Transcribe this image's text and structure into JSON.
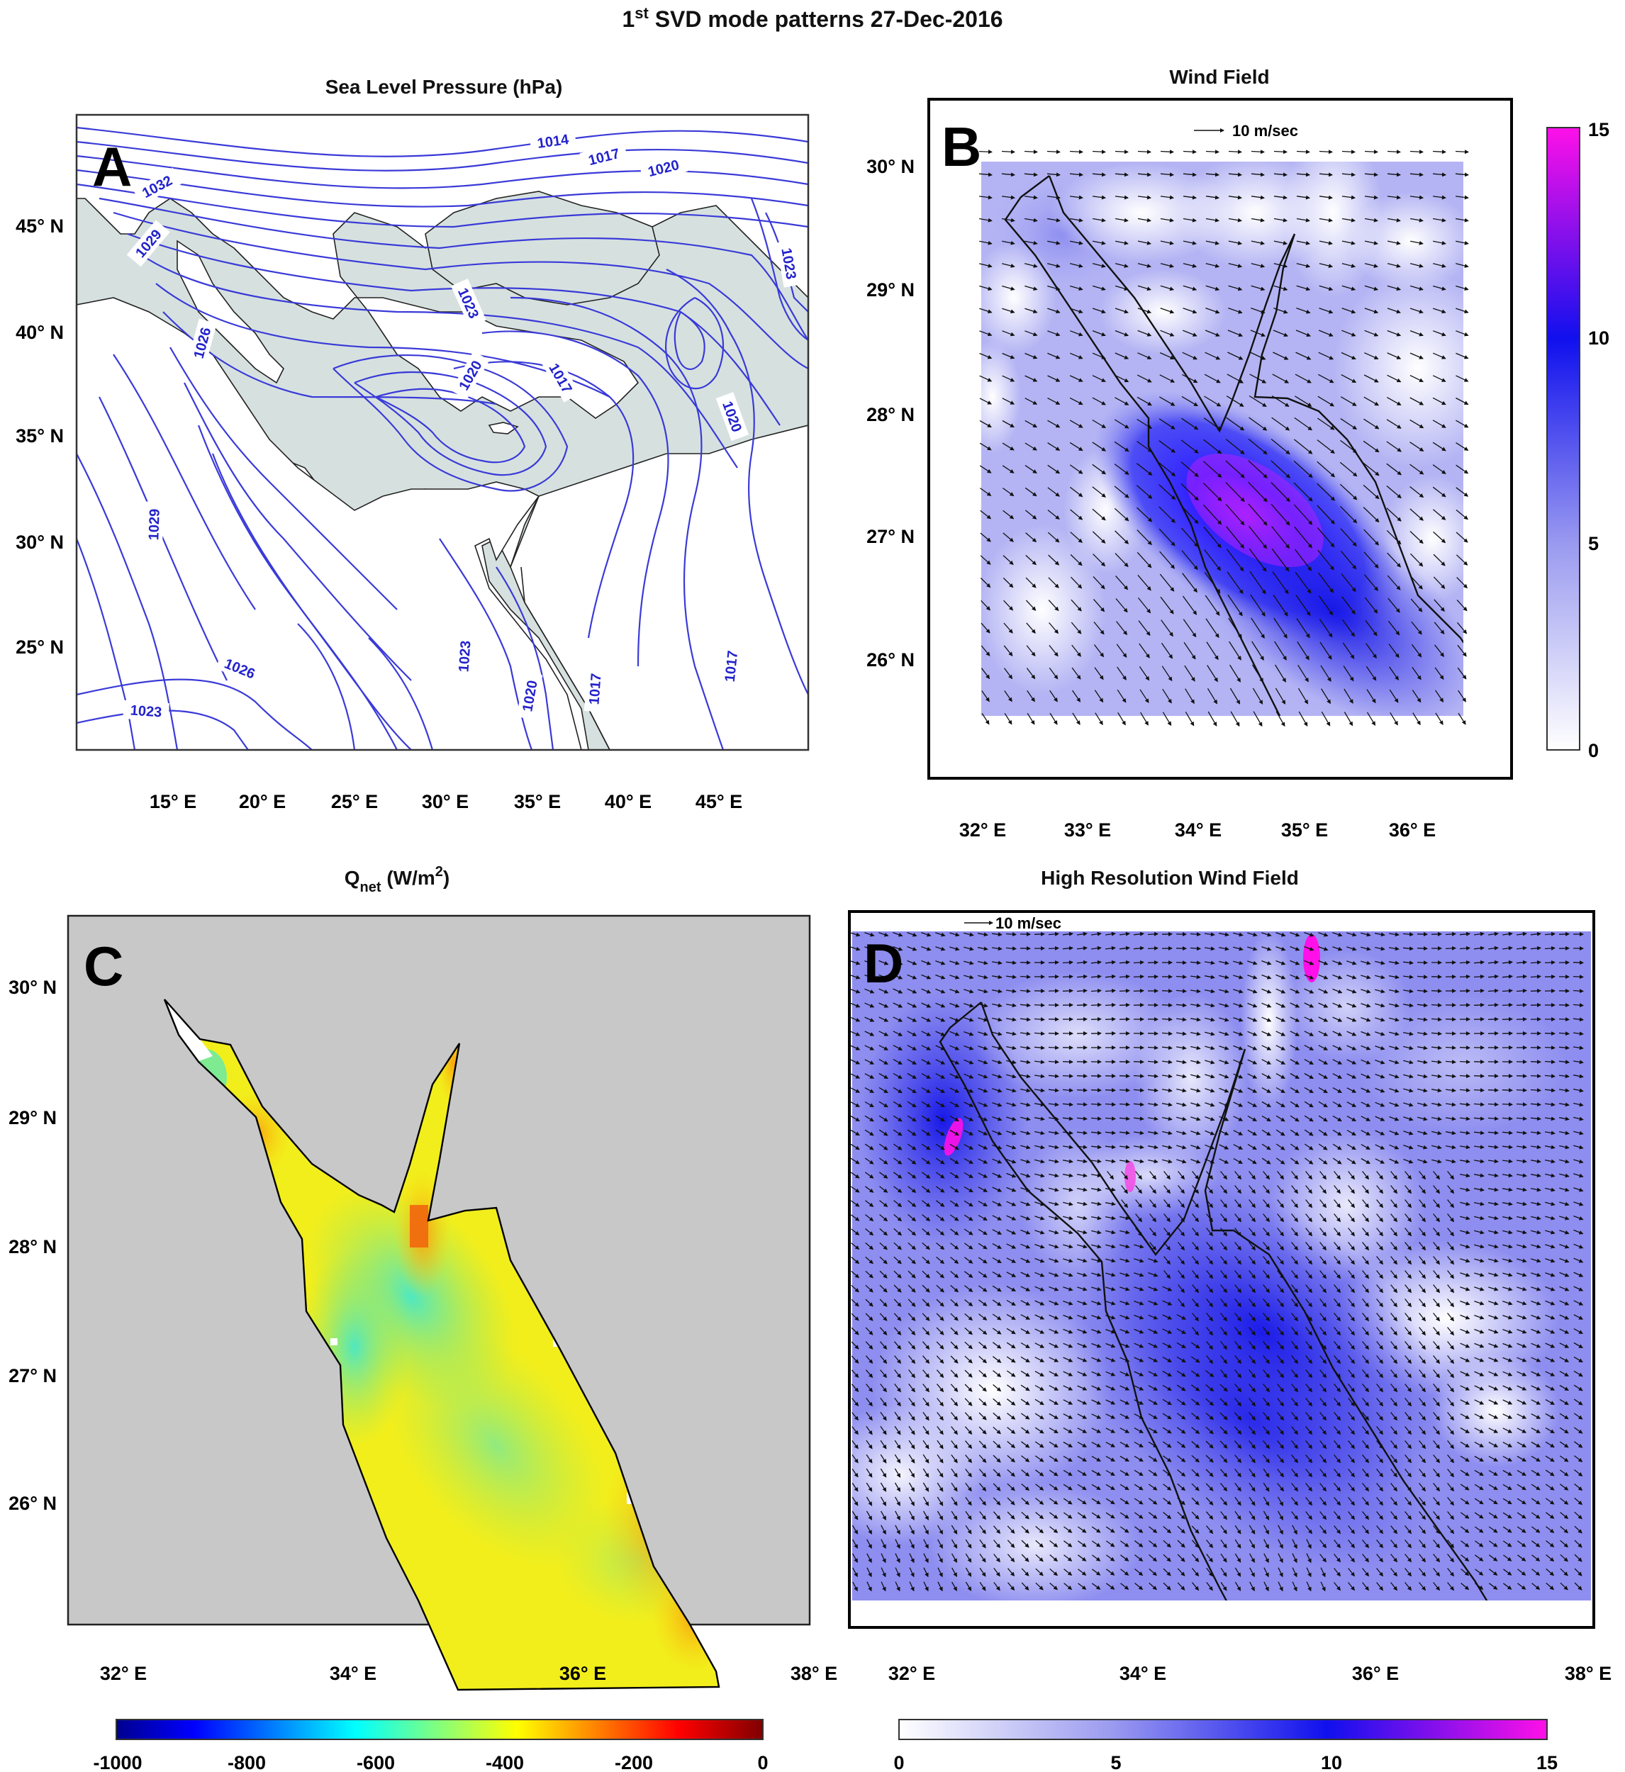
{
  "figure": {
    "title_base": "SVD mode patterns 27-Dec-2016",
    "title_ordinal": "1",
    "title_sup": "st"
  },
  "panels": {
    "A": {
      "letter": "A",
      "title": "Sea Level Pressure (hPa)",
      "lat_ticks": [
        "45° N",
        "40° N",
        "35° N",
        "30° N",
        "25° N"
      ],
      "lon_ticks": [
        "15° E",
        "20° E",
        "25° E",
        "30° E",
        "35° E",
        "40° E",
        "45° E"
      ],
      "contour_labels": [
        "1014",
        "1017",
        "1020",
        "1032",
        "1029",
        "1026",
        "1023",
        "1020",
        "1017",
        "1020",
        "1023",
        "1029",
        "1026",
        "1023",
        "1023",
        "1020",
        "1017",
        "1017"
      ],
      "colors": {
        "land": "#ffffff",
        "sea": "#d6e1df",
        "isobar": "#3a3ad8"
      }
    },
    "B": {
      "letter": "B",
      "title": "Wind Field",
      "reference_arrow": "10 m/sec",
      "lat_ticks": [
        "30° N",
        "29° N",
        "28° N",
        "27° N",
        "26° N"
      ],
      "lon_ticks": [
        "32° E",
        "33° E",
        "34° E",
        "35° E",
        "36° E"
      ],
      "colorbar": {
        "ticks": [
          "15",
          "10",
          "5",
          "0"
        ],
        "min": 0,
        "max": 15
      }
    },
    "C": {
      "letter": "C",
      "title_main": "Q",
      "title_sub": "net",
      "title_units": " (W/m",
      "title_sup": "2",
      "title_close": ")",
      "lat_ticks": [
        "30° N",
        "29° N",
        "28° N",
        "27° N",
        "26° N"
      ],
      "lon_ticks": [
        "32° E",
        "34° E",
        "36° E",
        "38° E"
      ],
      "colorbar": {
        "ticks": [
          "-1000",
          "-800",
          "-600",
          "-400",
          "-200",
          "0"
        ],
        "min": -1000,
        "max": 0
      },
      "colors": {
        "background": "#c8c8c8",
        "sea": "#f2ee1c"
      }
    },
    "D": {
      "letter": "D",
      "title": "High Resolution Wind Field",
      "reference_arrow": "10 m/sec",
      "lon_ticks": [
        "32° E",
        "34° E",
        "36° E",
        "38° E"
      ],
      "colorbar": {
        "ticks": [
          "0",
          "5",
          "10",
          "15"
        ],
        "min": 0,
        "max": 15
      }
    }
  }
}
